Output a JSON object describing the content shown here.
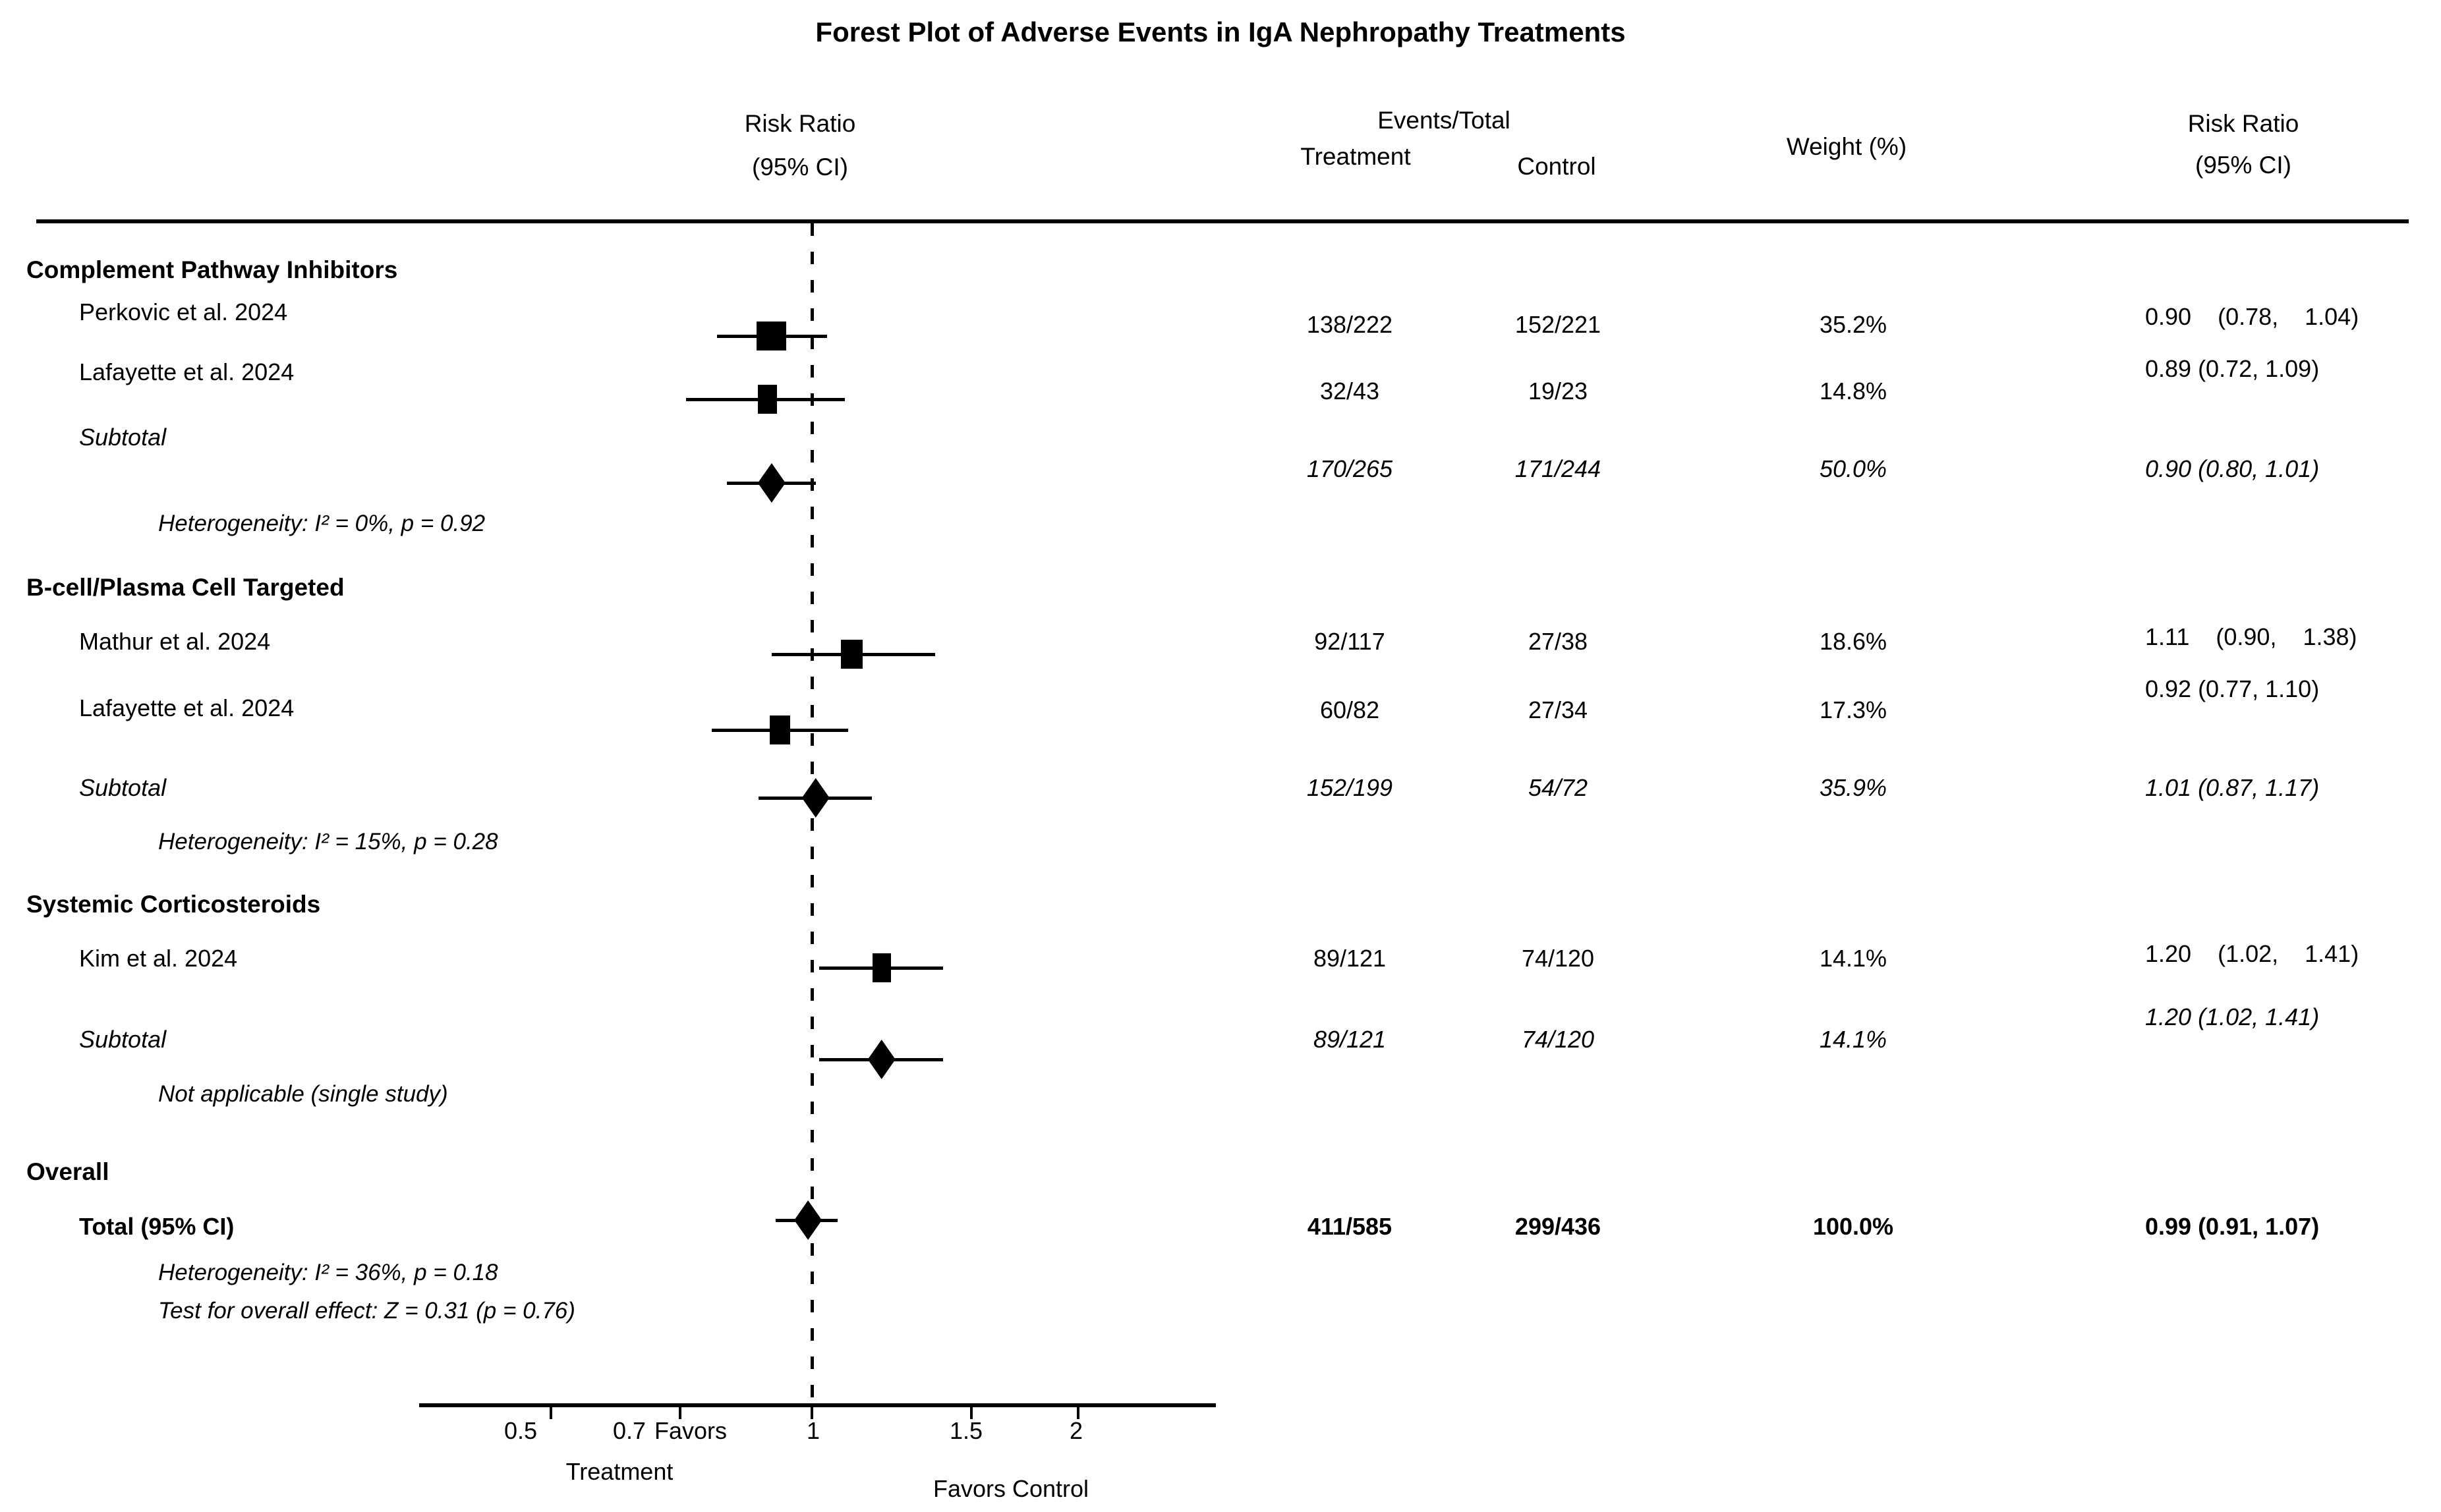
{
  "chart_data": {
    "type": "scatter",
    "variant": "forest-plot",
    "title": "Forest Plot of Adverse Events in IgA Nephropathy Treatments",
    "columns": {
      "rr_left": [
        "Risk Ratio",
        "(95% CI)"
      ],
      "events_total": "Events/Total",
      "treatment": "Treatment",
      "control": "Control",
      "weight": "Weight (%)",
      "rr_right": [
        "Risk Ratio",
        "(95% CI)"
      ]
    },
    "x_axis": {
      "scale": "log",
      "ticks": [
        0.5,
        0.7,
        1,
        1.5,
        2
      ],
      "tick_labels": [
        "0.5",
        "0.7",
        "1",
        "1.5",
        "2"
      ],
      "reference_line": 1,
      "favors_treatment": {
        "line1": "Favors",
        "line2": "Treatment"
      },
      "favors_control": "Favors Control"
    },
    "groups": [
      {
        "name": "Complement Pathway Inhibitors",
        "rows": [
          {
            "id": "perkovic",
            "style": "study",
            "label": "Perkovic et al. 2024",
            "treatment": "138/222",
            "control": "152/221",
            "weight": "35.2%",
            "weight_pct": 35.2,
            "rr": 0.9,
            "ci_low": 0.78,
            "ci_high": 1.04,
            "rr_text": "0.90    (0.78,    1.04)"
          },
          {
            "id": "lafayette1",
            "style": "study",
            "label": "Lafayette et al. 2024",
            "treatment": "32/43",
            "control": "19/23",
            "weight": "14.8%",
            "weight_pct": 14.8,
            "rr": 0.89,
            "ci_low": 0.72,
            "ci_high": 1.09,
            "rr_text": "0.89 (0.72, 1.09)"
          },
          {
            "id": "subtotal1",
            "style": "subtotal",
            "label": "Subtotal",
            "treatment": "170/265",
            "control": "171/244",
            "weight": "50.0%",
            "weight_pct": 50.0,
            "rr": 0.9,
            "ci_low": 0.8,
            "ci_high": 1.01,
            "rr_text": "0.90 (0.80, 1.01)"
          }
        ],
        "note": "Heterogeneity: I² = 0%, p = 0.92"
      },
      {
        "name": "B-cell/Plasma Cell Targeted",
        "rows": [
          {
            "id": "mathur",
            "style": "study",
            "label": "Mathur et al. 2024",
            "treatment": "92/117",
            "control": "27/38",
            "weight": "18.6%",
            "weight_pct": 18.6,
            "rr": 1.11,
            "ci_low": 0.9,
            "ci_high": 1.38,
            "rr_text": "1.11    (0.90,    1.38)"
          },
          {
            "id": "lafayette2",
            "style": "study",
            "label": "Lafayette et al. 2024",
            "treatment": "60/82",
            "control": "27/34",
            "weight": "17.3%",
            "weight_pct": 17.3,
            "rr": 0.92,
            "ci_low": 0.77,
            "ci_high": 1.1,
            "rr_text": "0.92 (0.77, 1.10)"
          },
          {
            "id": "subtotal2",
            "style": "subtotal",
            "label": "Subtotal",
            "treatment": "152/199",
            "control": "54/72",
            "weight": "35.9%",
            "weight_pct": 35.9,
            "rr": 1.01,
            "ci_low": 0.87,
            "ci_high": 1.17,
            "rr_text": "1.01 (0.87, 1.17)"
          }
        ],
        "note": "Heterogeneity: I² = 15%, p = 0.28"
      },
      {
        "name": "Systemic Corticosteroids",
        "rows": [
          {
            "id": "kim",
            "style": "study",
            "label": "Kim et al. 2024",
            "treatment": "89/121",
            "control": "74/120",
            "weight": "14.1%",
            "weight_pct": 14.1,
            "rr": 1.2,
            "ci_low": 1.02,
            "ci_high": 1.41,
            "rr_text": "1.20    (1.02,    1.41)"
          },
          {
            "id": "subtotal3",
            "style": "subtotal",
            "label": "Subtotal",
            "treatment": "89/121",
            "control": "74/120",
            "weight": "14.1%",
            "weight_pct": 14.1,
            "rr": 1.2,
            "ci_low": 1.02,
            "ci_high": 1.41,
            "rr_text": "1.20 (1.02, 1.41)"
          }
        ],
        "note": "Not applicable (single study)"
      }
    ],
    "overall": {
      "section_label": "Overall",
      "row": {
        "id": "total",
        "style": "total",
        "label": "Total (95% CI)",
        "treatment": "411/585",
        "control": "299/436",
        "weight": "100.0%",
        "weight_pct": 100.0,
        "rr": 0.99,
        "ci_low": 0.91,
        "ci_high": 1.07,
        "rr_text": "0.99 (0.91, 1.07)"
      },
      "notes": [
        "Heterogeneity: I² = 36%, p = 0.18",
        "Test for overall effect: Z = 0.31 (p = 0.76)"
      ]
    }
  }
}
